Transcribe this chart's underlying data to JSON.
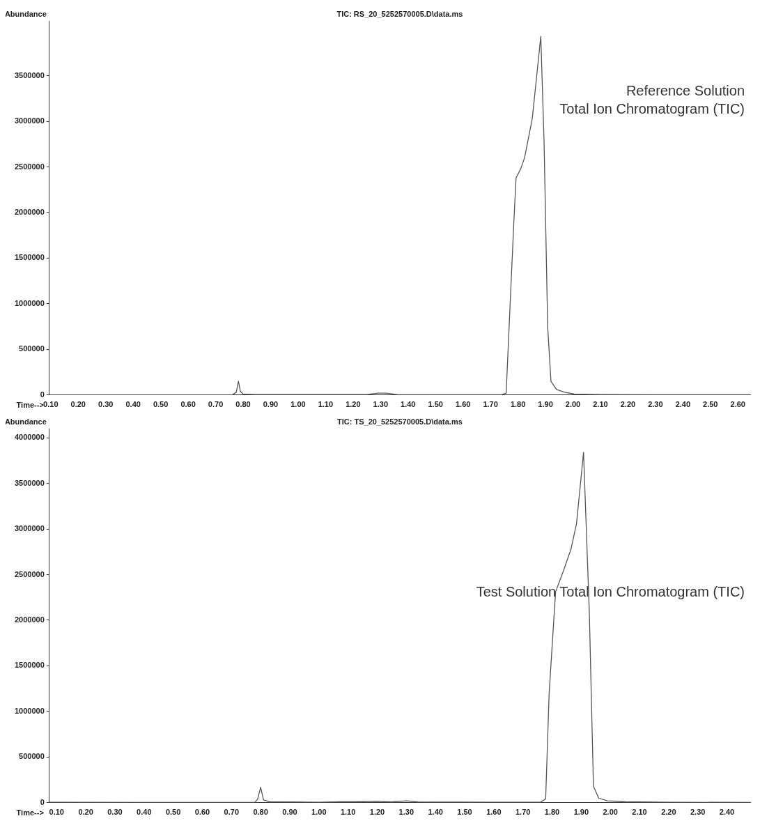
{
  "chart_data": [
    {
      "type": "line",
      "title": "TIC: RS_20_5252570005.D\\data.ms",
      "xlabel": "Time-->",
      "ylabel": "Abundance",
      "annotations": [
        "Reference Solution\nTotal Ion Chromatogram (TIC)"
      ],
      "marker": "none",
      "grid": false,
      "xlim": [
        0.095,
        2.645
      ],
      "ylim": [
        0,
        4100000
      ],
      "xticks": [
        {
          "value": 0.1,
          "label": "0.10"
        },
        {
          "value": 0.2,
          "label": "0.20"
        },
        {
          "value": 0.3,
          "label": "0.30"
        },
        {
          "value": 0.4,
          "label": "0.40"
        },
        {
          "value": 0.5,
          "label": "0.50"
        },
        {
          "value": 0.6,
          "label": "0.60"
        },
        {
          "value": 0.7,
          "label": "0.70"
        },
        {
          "value": 0.8,
          "label": "0.80"
        },
        {
          "value": 0.9,
          "label": "0.90"
        },
        {
          "value": 1.0,
          "label": "1.00"
        },
        {
          "value": 1.1,
          "label": "1.10"
        },
        {
          "value": 1.2,
          "label": "1.20"
        },
        {
          "value": 1.3,
          "label": "1.30"
        },
        {
          "value": 1.4,
          "label": "1.40"
        },
        {
          "value": 1.5,
          "label": "1.50"
        },
        {
          "value": 1.6,
          "label": "1.60"
        },
        {
          "value": 1.7,
          "label": "1.70"
        },
        {
          "value": 1.8,
          "label": "1.80"
        },
        {
          "value": 1.9,
          "label": "1.90"
        },
        {
          "value": 2.0,
          "label": "2.00"
        },
        {
          "value": 2.1,
          "label": "2.10"
        },
        {
          "value": 2.2,
          "label": "2.20"
        },
        {
          "value": 2.3,
          "label": "2.30"
        },
        {
          "value": 2.4,
          "label": "2.40"
        },
        {
          "value": 2.5,
          "label": "2.50"
        },
        {
          "value": 2.6,
          "label": "2.60"
        }
      ],
      "yticks": [
        0,
        500000,
        1000000,
        1500000,
        2000000,
        2500000,
        3000000,
        3500000
      ],
      "series": [
        {
          "color": "#555555",
          "x": [
            0.095,
            0.3,
            0.5,
            0.76,
            0.775,
            0.783,
            0.79,
            0.8,
            0.85,
            1.0,
            1.25,
            1.29,
            1.32,
            1.36,
            1.6,
            1.74,
            1.757,
            1.77,
            1.785,
            1.793,
            1.81,
            1.824,
            1.852,
            1.883,
            1.895,
            1.908,
            1.92,
            1.94,
            1.97,
            2.005,
            2.1,
            2.3,
            2.645
          ],
          "values": [
            0,
            0,
            0,
            0,
            30000,
            150000,
            40000,
            10000,
            5000,
            5000,
            5000,
            20000,
            20000,
            5000,
            3000,
            3000,
            20000,
            900000,
            1900000,
            2380000,
            2480000,
            2600000,
            3030000,
            3930000,
            2760000,
            750000,
            150000,
            60000,
            30000,
            10000,
            5000,
            3000,
            3000
          ]
        }
      ]
    },
    {
      "type": "line",
      "title": "TIC: TS_20_5252570005.D\\data.ms",
      "xlabel": "Time-->",
      "ylabel": "Abundance",
      "annotations": [
        "Test Solution Total Ion Chromatogram (TIC)"
      ],
      "marker": "none",
      "grid": false,
      "xlim": [
        0.075,
        2.48
      ],
      "ylim": [
        0,
        4100000
      ],
      "xticks": [
        {
          "value": 0.1,
          "label": "0.10"
        },
        {
          "value": 0.2,
          "label": "0.20"
        },
        {
          "value": 0.3,
          "label": "0.30"
        },
        {
          "value": 0.4,
          "label": "0.40"
        },
        {
          "value": 0.5,
          "label": "0.50"
        },
        {
          "value": 0.6,
          "label": "0.60"
        },
        {
          "value": 0.7,
          "label": "0.70"
        },
        {
          "value": 0.8,
          "label": "0.80"
        },
        {
          "value": 0.9,
          "label": "0.90"
        },
        {
          "value": 1.0,
          "label": "1.00"
        },
        {
          "value": 1.1,
          "label": "1.10"
        },
        {
          "value": 1.2,
          "label": "1.20"
        },
        {
          "value": 1.3,
          "label": "1.30"
        },
        {
          "value": 1.4,
          "label": "1.40"
        },
        {
          "value": 1.5,
          "label": "1.50"
        },
        {
          "value": 1.6,
          "label": "1.60"
        },
        {
          "value": 1.7,
          "label": "1.70"
        },
        {
          "value": 1.8,
          "label": "1.80"
        },
        {
          "value": 1.9,
          "label": "1.90"
        },
        {
          "value": 2.0,
          "label": "2.00"
        },
        {
          "value": 2.1,
          "label": "2.10"
        },
        {
          "value": 2.2,
          "label": "2.20"
        },
        {
          "value": 2.3,
          "label": "2.30"
        },
        {
          "value": 2.4,
          "label": "2.40"
        }
      ],
      "yticks": [
        0,
        500000,
        1000000,
        1500000,
        2000000,
        2500000,
        3000000,
        3500000,
        4000000
      ],
      "series": [
        {
          "color": "#555555",
          "x": [
            0.075,
            0.4,
            0.78,
            0.79,
            0.8,
            0.81,
            0.83,
            1.0,
            1.08,
            1.12,
            1.2,
            1.25,
            1.3,
            1.34,
            1.6,
            1.76,
            1.778,
            1.79,
            1.812,
            1.84,
            1.865,
            1.884,
            1.908,
            1.928,
            1.942,
            1.96,
            1.99,
            2.05,
            2.2,
            2.48
          ],
          "values": [
            5000,
            3000,
            3000,
            40000,
            170000,
            30000,
            10000,
            5000,
            10000,
            10000,
            15000,
            8000,
            20000,
            8000,
            5000,
            5000,
            40000,
            1200000,
            2310000,
            2550000,
            2780000,
            3060000,
            3840000,
            2070000,
            180000,
            50000,
            20000,
            10000,
            5000,
            3000
          ]
        }
      ]
    }
  ]
}
